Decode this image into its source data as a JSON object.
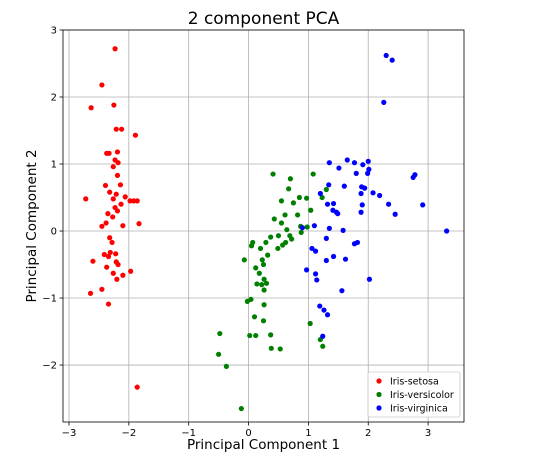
{
  "chart_data": {
    "type": "scatter",
    "title": "2 component PCA",
    "xlabel": "Principal Component 1",
    "ylabel": "Principal Component 2",
    "xlim": [
      -3.1,
      3.6
    ],
    "ylim": [
      -2.85,
      3.0
    ],
    "xticks": [
      {
        "value": -3,
        "label": "−3"
      },
      {
        "value": -2,
        "label": "−2"
      },
      {
        "value": -1,
        "label": "−1"
      },
      {
        "value": 0,
        "label": "0"
      },
      {
        "value": 1,
        "label": "1"
      },
      {
        "value": 2,
        "label": "2"
      },
      {
        "value": 3,
        "label": "3"
      }
    ],
    "yticks": [
      {
        "value": -2,
        "label": "−2"
      },
      {
        "value": -1,
        "label": "−1"
      },
      {
        "value": 0,
        "label": "0"
      },
      {
        "value": 1,
        "label": "1"
      },
      {
        "value": 2,
        "label": "2"
      },
      {
        "value": 3,
        "label": "3"
      }
    ],
    "grid": true,
    "legend_position": "lower-right",
    "series": [
      {
        "name": "Iris-setosa",
        "color": "#ff0000",
        "points": [
          [
            -2.23,
            2.72
          ],
          [
            -2.45,
            2.18
          ],
          [
            -2.63,
            1.84
          ],
          [
            -2.25,
            1.88
          ],
          [
            -2.21,
            1.52
          ],
          [
            -2.12,
            1.52
          ],
          [
            -1.89,
            1.43
          ],
          [
            -2.37,
            1.16
          ],
          [
            -2.33,
            1.16
          ],
          [
            -2.19,
            1.18
          ],
          [
            -2.23,
            1.06
          ],
          [
            -2.18,
            1.02
          ],
          [
            -2.26,
            0.96
          ],
          [
            -2.19,
            0.83
          ],
          [
            -2.39,
            0.68
          ],
          [
            -2.14,
            0.69
          ],
          [
            -2.32,
            0.58
          ],
          [
            -2.21,
            0.55
          ],
          [
            -2.26,
            0.48
          ],
          [
            -2.72,
            0.48
          ],
          [
            -2.06,
            0.51
          ],
          [
            -1.98,
            0.45
          ],
          [
            -1.92,
            0.45
          ],
          [
            -1.86,
            0.45
          ],
          [
            -2.13,
            0.4
          ],
          [
            -2.23,
            0.35
          ],
          [
            -2.19,
            0.3
          ],
          [
            -2.35,
            0.26
          ],
          [
            -2.27,
            0.21
          ],
          [
            -2.38,
            0.12
          ],
          [
            -2.45,
            0.07
          ],
          [
            -1.83,
            0.11
          ],
          [
            -2.1,
            0.08
          ],
          [
            -2.32,
            -0.1
          ],
          [
            -2.28,
            -0.17
          ],
          [
            -2.31,
            -0.32
          ],
          [
            -2.41,
            -0.35
          ],
          [
            -2.34,
            -0.38
          ],
          [
            -2.22,
            -0.34
          ],
          [
            -2.6,
            -0.45
          ],
          [
            -2.21,
            -0.46
          ],
          [
            -2.18,
            -0.5
          ],
          [
            -2.37,
            -0.54
          ],
          [
            -1.97,
            -0.6
          ],
          [
            -2.26,
            -0.63
          ],
          [
            -2.1,
            -0.66
          ],
          [
            -2.2,
            -0.72
          ],
          [
            -2.45,
            -0.87
          ],
          [
            -2.64,
            -0.93
          ],
          [
            -2.34,
            -1.09
          ],
          [
            -1.86,
            -2.33
          ]
        ]
      },
      {
        "name": "Iris-versicolor",
        "color": "#008000",
        "points": [
          [
            0.41,
            0.85
          ],
          [
            0.7,
            0.78
          ],
          [
            1.08,
            0.85
          ],
          [
            0.67,
            0.63
          ],
          [
            0.85,
            0.5
          ],
          [
            0.97,
            0.49
          ],
          [
            0.55,
            0.45
          ],
          [
            1.3,
            0.62
          ],
          [
            1.23,
            0.5
          ],
          [
            0.75,
            0.42
          ],
          [
            1.04,
            0.31
          ],
          [
            0.82,
            0.24
          ],
          [
            0.61,
            0.24
          ],
          [
            0.43,
            0.18
          ],
          [
            0.55,
            0.12
          ],
          [
            0.87,
            0.07
          ],
          [
            0.64,
            0.02
          ],
          [
            0.98,
            0.06
          ],
          [
            0.88,
            -0.02
          ],
          [
            0.5,
            -0.07
          ],
          [
            0.69,
            -0.07
          ],
          [
            0.37,
            -0.09
          ],
          [
            0.72,
            -0.12
          ],
          [
            0.62,
            -0.17
          ],
          [
            0.29,
            -0.17
          ],
          [
            0.07,
            -0.17
          ],
          [
            0.05,
            -0.22
          ],
          [
            0.57,
            -0.21
          ],
          [
            0.2,
            -0.26
          ],
          [
            0.49,
            -0.26
          ],
          [
            0.32,
            -0.36
          ],
          [
            -0.07,
            -0.43
          ],
          [
            0.23,
            -0.43
          ],
          [
            0.25,
            -0.5
          ],
          [
            0.12,
            -0.55
          ],
          [
            0.18,
            -0.63
          ],
          [
            0.26,
            -0.72
          ],
          [
            0.3,
            -0.78
          ],
          [
            0.14,
            -0.79
          ],
          [
            0.22,
            -0.8
          ],
          [
            0.26,
            -0.88
          ],
          [
            0.04,
            -1.02
          ],
          [
            -0.02,
            -1.05
          ],
          [
            0.26,
            -1.1
          ],
          [
            0.1,
            -1.28
          ],
          [
            0.25,
            -1.34
          ],
          [
            1.03,
            -1.38
          ],
          [
            0.37,
            -1.55
          ],
          [
            0.12,
            -1.56
          ],
          [
            0.02,
            -1.56
          ],
          [
            -0.48,
            -1.53
          ],
          [
            1.2,
            -1.62
          ],
          [
            1.24,
            -1.72
          ],
          [
            0.38,
            -1.75
          ],
          [
            0.53,
            -1.76
          ],
          [
            -0.5,
            -1.84
          ],
          [
            -0.37,
            -2.02
          ],
          [
            -0.12,
            -2.65
          ]
        ]
      },
      {
        "name": "Iris-virginica",
        "color": "#0000ff",
        "points": [
          [
            2.3,
            2.62
          ],
          [
            2.4,
            2.55
          ],
          [
            2.26,
            1.92
          ],
          [
            1.65,
            1.06
          ],
          [
            1.77,
            1.02
          ],
          [
            2.0,
            1.04
          ],
          [
            1.35,
            1.02
          ],
          [
            1.91,
            0.99
          ],
          [
            1.51,
            0.94
          ],
          [
            2.01,
            0.92
          ],
          [
            1.99,
            0.86
          ],
          [
            1.8,
            0.86
          ],
          [
            2.78,
            0.84
          ],
          [
            2.75,
            0.8
          ],
          [
            1.34,
            0.69
          ],
          [
            1.6,
            0.67
          ],
          [
            1.89,
            0.66
          ],
          [
            1.94,
            0.64
          ],
          [
            2.08,
            0.57
          ],
          [
            1.88,
            0.56
          ],
          [
            1.2,
            0.56
          ],
          [
            2.19,
            0.53
          ],
          [
            1.42,
            0.41
          ],
          [
            1.32,
            0.4
          ],
          [
            2.34,
            0.4
          ],
          [
            1.9,
            0.39
          ],
          [
            2.91,
            0.39
          ],
          [
            1.41,
            0.31
          ],
          [
            1.88,
            0.28
          ],
          [
            1.47,
            0.28
          ],
          [
            1.49,
            0.26
          ],
          [
            2.45,
            0.25
          ],
          [
            1.1,
            0.08
          ],
          [
            0.9,
            0.05
          ],
          [
            1.35,
            0.04
          ],
          [
            1.58,
            0.01
          ],
          [
            3.31,
            0.0
          ],
          [
            1.3,
            -0.11
          ],
          [
            1.06,
            -0.26
          ],
          [
            1.12,
            -0.3
          ],
          [
            1.42,
            -0.38
          ],
          [
            1.62,
            -0.42
          ],
          [
            1.82,
            -0.17
          ],
          [
            1.77,
            -0.19
          ],
          [
            1.3,
            -0.44
          ],
          [
            0.97,
            -0.58
          ],
          [
            1.12,
            -0.64
          ],
          [
            1.14,
            -0.73
          ],
          [
            2.02,
            -0.72
          ],
          [
            1.56,
            -0.89
          ],
          [
            1.19,
            -1.12
          ],
          [
            1.26,
            -1.18
          ],
          [
            1.32,
            -1.25
          ],
          [
            1.24,
            -1.57
          ]
        ]
      }
    ]
  }
}
